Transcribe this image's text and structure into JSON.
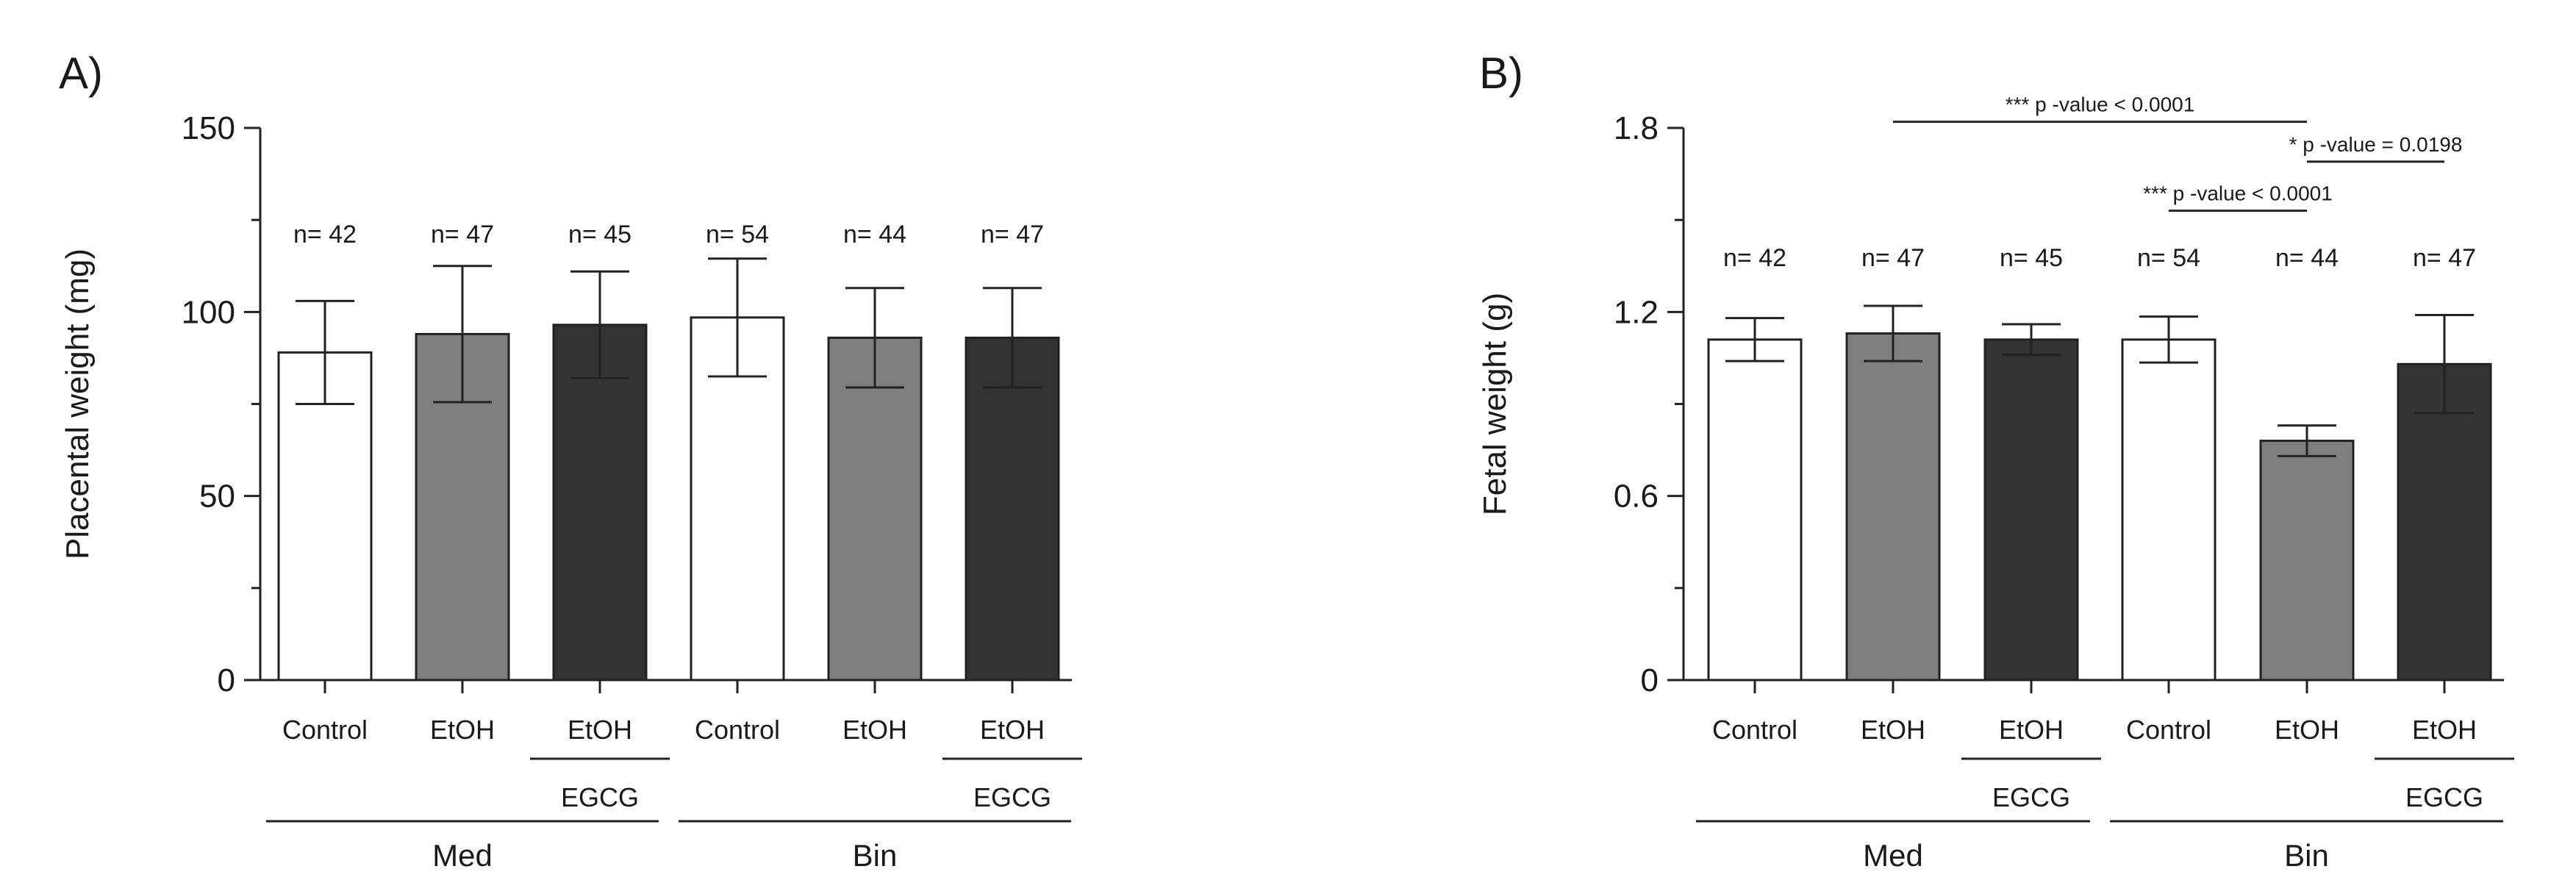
{
  "chart_data": [
    {
      "type": "bar",
      "panel": "A)",
      "title": "",
      "xlabel": "",
      "ylabel": "Placental weight (mg)",
      "ylim": [
        0,
        150
      ],
      "yticks": [
        0,
        50,
        100,
        150
      ],
      "yticklabels": [
        "0",
        "50",
        "100",
        "150"
      ],
      "categories": [
        "Control",
        "EtOH",
        "EtOH",
        "Control",
        "EtOH",
        "EtOH"
      ],
      "values": [
        89,
        94,
        96.5,
        98.5,
        93,
        93
      ],
      "errors": [
        14,
        18.5,
        14.5,
        16,
        13.5,
        13.5
      ],
      "fill_colors": [
        "#ffffff",
        "#7f7f7f",
        "#333333",
        "#ffffff",
        "#7f7f7f",
        "#333333"
      ],
      "n_labels": [
        "n= 42",
        "n= 47",
        "n= 45",
        "n= 54",
        "n= 44",
        "n= 47"
      ],
      "sub_labels": [
        {
          "text": "EGCG",
          "indices": [
            2
          ]
        },
        {
          "text": "EGCG",
          "indices": [
            5
          ]
        }
      ],
      "groups": [
        {
          "text": "Med",
          "indices": [
            0,
            1,
            2
          ]
        },
        {
          "text": "Bin",
          "indices": [
            3,
            4,
            5
          ]
        }
      ],
      "significance": []
    },
    {
      "type": "bar",
      "panel": "B)",
      "title": "",
      "xlabel": "",
      "ylabel": "Fetal weight (g)",
      "ylim": [
        0,
        1.8
      ],
      "yticks": [
        0,
        0.6,
        1.2,
        1.8
      ],
      "yticklabels": [
        "0",
        "0.6",
        "1.2",
        "1.8"
      ],
      "categories": [
        "Control",
        "EtOH",
        "EtOH",
        "Control",
        "EtOH",
        "EtOH"
      ],
      "values": [
        1.11,
        1.13,
        1.11,
        1.11,
        0.78,
        1.03
      ],
      "errors": [
        0.07,
        0.09,
        0.05,
        0.075,
        0.05,
        0.16
      ],
      "fill_colors": [
        "#ffffff",
        "#7f7f7f",
        "#333333",
        "#ffffff",
        "#7f7f7f",
        "#333333"
      ],
      "n_labels": [
        "n= 42",
        "n= 47",
        "n= 45",
        "n= 54",
        "n= 44",
        "n= 47"
      ],
      "sub_labels": [
        {
          "text": "EGCG",
          "indices": [
            2
          ]
        },
        {
          "text": "EGCG",
          "indices": [
            5
          ]
        }
      ],
      "groups": [
        {
          "text": "Med",
          "indices": [
            0,
            1,
            2
          ]
        },
        {
          "text": "Bin",
          "indices": [
            3,
            4,
            5
          ]
        }
      ],
      "significance": [
        {
          "from": 1,
          "to": 4,
          "y": 1.82,
          "text": "*** p -value < 0.0001",
          "align": "center"
        },
        {
          "from": 4,
          "to": 5,
          "y": 1.69,
          "text": "* p -value = 0.0198",
          "align": "center"
        },
        {
          "from": 3,
          "to": 4,
          "y": 1.53,
          "text": "*** p -value < 0.0001",
          "align": "center"
        }
      ]
    }
  ]
}
